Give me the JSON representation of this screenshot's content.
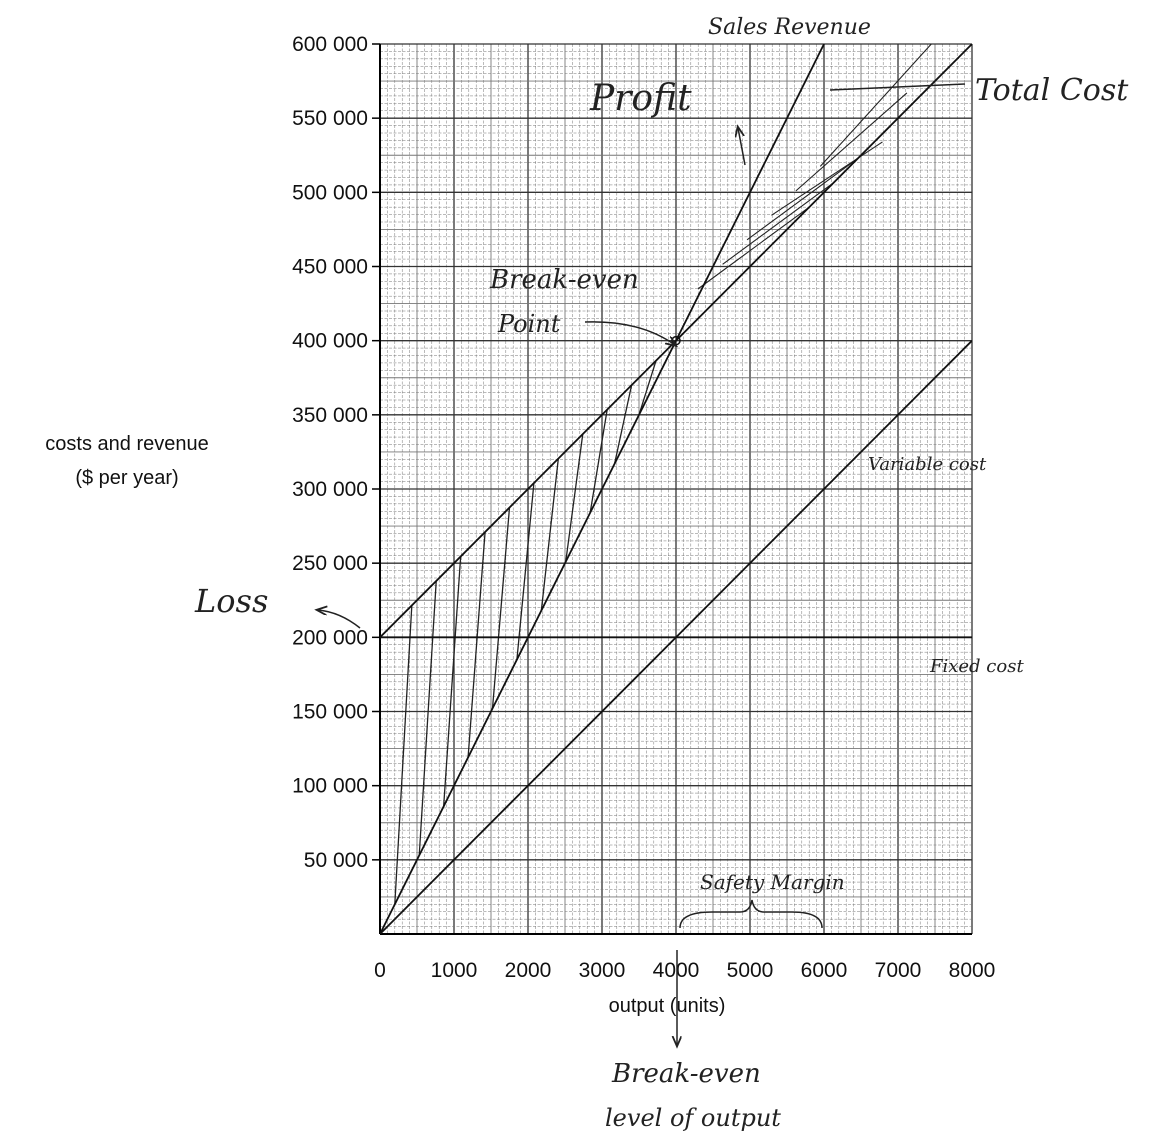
{
  "chart_data": {
    "type": "line",
    "title": "",
    "xlabel": "output (units)",
    "ylabel": [
      "costs and revenue",
      "($ per year)"
    ],
    "xlim": [
      0,
      8000
    ],
    "ylim": [
      0,
      600000
    ],
    "x_ticks": [
      "0",
      "1000",
      "2000",
      "3000",
      "4000",
      "5000",
      "6000",
      "7000",
      "8000"
    ],
    "y_ticks": [
      "50 000",
      "100 000",
      "150 000",
      "200 000",
      "250 000",
      "300 000",
      "350 000",
      "400 000",
      "450 000",
      "500 000",
      "550 000",
      "600 000"
    ],
    "grid": true,
    "series": [
      {
        "name": "Sales Revenue",
        "points": [
          [
            0,
            0
          ],
          [
            6000,
            600000
          ]
        ]
      },
      {
        "name": "Total Cost",
        "points": [
          [
            0,
            200000
          ],
          [
            8000,
            600000
          ]
        ]
      },
      {
        "name": "Variable cost",
        "points": [
          [
            0,
            0
          ],
          [
            8000,
            400000
          ]
        ]
      },
      {
        "name": "Fixed cost",
        "points": [
          [
            0,
            200000
          ],
          [
            8000,
            200000
          ]
        ]
      }
    ],
    "break_even": {
      "x": 4000,
      "y": 400000
    },
    "annotations": {
      "profit": "Profit",
      "loss": "Loss",
      "break_even_point": [
        "Break-even",
        "Point"
      ],
      "safety_margin": "Safety Margin",
      "break_even_output": [
        "Break-even",
        "level of output"
      ]
    }
  }
}
